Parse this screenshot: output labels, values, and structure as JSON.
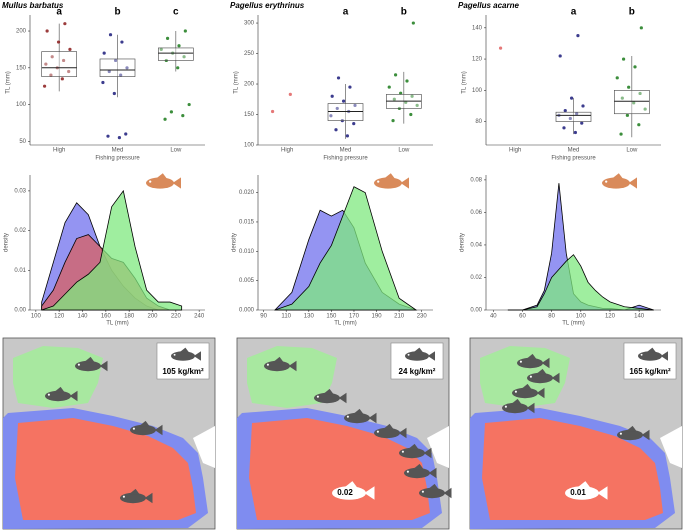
{
  "chart_data": [
    {
      "type": "box",
      "title": "Mullus barbatus",
      "ylabel": "TL (mm)",
      "xlabel": "Fishing pressure",
      "categories": [
        "High",
        "Med",
        "Low"
      ],
      "letters": [
        "a",
        "b",
        "c"
      ],
      "colors": [
        "#8b1a1a",
        "#1a1a7a",
        "#1a7a1a"
      ],
      "stats": [
        {
          "low": 118,
          "q1": 138,
          "median": 150,
          "q3": 172,
          "high": 210
        },
        {
          "low": 110,
          "q1": 138,
          "median": 147,
          "q3": 162,
          "high": 195
        },
        {
          "low": 145,
          "q1": 160,
          "median": 170,
          "q3": 177,
          "high": 200
        }
      ],
      "points": [
        [
          125,
          135,
          140,
          145,
          150,
          155,
          160,
          165,
          175,
          185,
          200,
          210
        ],
        [
          55,
          57,
          60,
          115,
          130,
          140,
          145,
          150,
          160,
          170,
          185,
          195
        ],
        [
          80,
          85,
          90,
          100,
          150,
          160,
          165,
          170,
          175,
          180,
          190,
          200
        ]
      ],
      "ylim": [
        45,
        215
      ],
      "yticks": [
        50,
        100,
        150,
        200
      ]
    },
    {
      "type": "box",
      "title": "Pagellus erythrinus",
      "ylabel": "TL (mm)",
      "xlabel": "Fishing pressure",
      "categories": [
        "High",
        "Med",
        "Low"
      ],
      "letters": [
        null,
        "a",
        "b"
      ],
      "colors": [
        "#e06060",
        "#1a1a7a",
        "#1a7a1a"
      ],
      "stats": [
        null,
        {
          "low": 110,
          "q1": 140,
          "median": 155,
          "q3": 168,
          "high": 200
        },
        {
          "low": 135,
          "q1": 160,
          "median": 172,
          "q3": 183,
          "high": 220
        }
      ],
      "points": [
        [
          155,
          183
        ],
        [
          115,
          125,
          135,
          140,
          148,
          155,
          160,
          165,
          172,
          180,
          195,
          210
        ],
        [
          140,
          150,
          160,
          165,
          170,
          175,
          180,
          185,
          195,
          205,
          215,
          300
        ]
      ],
      "ylim": [
        100,
        305
      ],
      "yticks": [
        100,
        150,
        200,
        250,
        300
      ]
    },
    {
      "type": "box",
      "title": "Pagellus acarne",
      "ylabel": "TL (mm)",
      "xlabel": "Fishing pressure",
      "categories": [
        "High",
        "Med",
        "Low"
      ],
      "letters": [
        null,
        "a",
        "b"
      ],
      "colors": [
        "#e06060",
        "#1a1a7a",
        "#1a7a1a"
      ],
      "stats": [
        null,
        {
          "low": 72,
          "q1": 80,
          "median": 84,
          "q3": 86,
          "high": 95
        },
        {
          "low": 70,
          "q1": 85,
          "median": 93,
          "q3": 100,
          "high": 122
        }
      ],
      "points": [
        [
          127
        ],
        [
          73,
          76,
          79,
          82,
          84,
          85,
          87,
          90,
          95,
          122,
          135
        ],
        [
          72,
          78,
          84,
          88,
          92,
          95,
          98,
          102,
          108,
          115,
          120,
          140
        ]
      ],
      "ylim": [
        65,
        145
      ],
      "yticks": [
        80,
        100,
        120,
        140
      ]
    },
    {
      "type": "density",
      "xlabel": "TL (mm)",
      "ylabel": "density",
      "x": [
        105,
        115,
        125,
        135,
        145,
        155,
        165,
        175,
        185,
        195,
        205,
        215,
        225
      ],
      "series": [
        {
          "color": "#7070ee",
          "values": [
            0.002,
            0.012,
            0.022,
            0.027,
            0.024,
            0.016,
            0.01,
            0.006,
            0.003,
            0.001,
            0,
            0,
            0
          ]
        },
        {
          "color": "#d86060",
          "values": [
            0.001,
            0.005,
            0.012,
            0.018,
            0.019,
            0.016,
            0.013,
            0.012,
            0.008,
            0.003,
            0.001,
            0,
            0
          ]
        },
        {
          "color": "#7fe87f",
          "values": [
            0,
            0.001,
            0.004,
            0.007,
            0.009,
            0.012,
            0.026,
            0.03,
            0.016,
            0.005,
            0.002,
            0.002,
            0.001
          ]
        }
      ],
      "xlim": [
        95,
        245
      ],
      "xticks": [
        100,
        120,
        140,
        160,
        180,
        200,
        220,
        240
      ],
      "ylim": [
        0,
        0.034
      ],
      "yticks": [
        {
          "value": 0,
          "label": "0.00"
        },
        0.01,
        0.02,
        0.03
      ]
    },
    {
      "type": "density",
      "xlabel": "TL (mm)",
      "ylabel": "density",
      "x": [
        100,
        115,
        130,
        140,
        150,
        160,
        170,
        180,
        195,
        210,
        225
      ],
      "series": [
        {
          "color": "#7070ee",
          "values": [
            0,
            0.003,
            0.012,
            0.017,
            0.016,
            0.017,
            0.014,
            0.008,
            0.003,
            0.001,
            0
          ]
        },
        {
          "color": "#7fe87f",
          "values": [
            0,
            0.001,
            0.004,
            0.008,
            0.011,
            0.016,
            0.021,
            0.02,
            0.01,
            0.002,
            0
          ]
        }
      ],
      "xlim": [
        85,
        240
      ],
      "xticks": [
        90,
        110,
        130,
        150,
        170,
        190,
        210,
        230
      ],
      "ylim": [
        0,
        0.023
      ],
      "yticks": [
        {
          "value": 0,
          "label": "0.000"
        },
        0.005,
        {
          "value": 0.01,
          "label": "0.010"
        },
        0.015,
        {
          "value": 0.02,
          "label": "0.020"
        }
      ]
    },
    {
      "type": "density",
      "xlabel": "TL (mm)",
      "ylabel": "density",
      "x": [
        50,
        60,
        70,
        75,
        80,
        85,
        90,
        95,
        100,
        105,
        110,
        115,
        120,
        130,
        140,
        150
      ],
      "series": [
        {
          "color": "#7070ee",
          "values": [
            0,
            0,
            0.003,
            0.012,
            0.035,
            0.078,
            0.035,
            0.01,
            0.005,
            0.003,
            0.002,
            0.001,
            0.001,
            0,
            0.003,
            0
          ]
        },
        {
          "color": "#7fe87f",
          "values": [
            0,
            0,
            0.002,
            0.01,
            0.02,
            0.025,
            0.03,
            0.034,
            0.027,
            0.017,
            0.012,
            0.008,
            0.005,
            0.002,
            0.001,
            0
          ]
        }
      ],
      "xlim": [
        35,
        155
      ],
      "xticks": [
        40,
        60,
        80,
        100,
        120,
        140
      ],
      "ylim": [
        0,
        0.083
      ],
      "yticks": [
        {
          "value": 0,
          "label": "0.00"
        },
        0.02,
        0.04,
        0.06,
        0.08
      ]
    }
  ],
  "maps": [
    {
      "density_label": "105 kg/km²"
    },
    {
      "density_label": "24 kg/km²",
      "mpa_label": "0.02"
    },
    {
      "density_label": "165 kg/km²",
      "mpa_label": "0.01"
    }
  ]
}
